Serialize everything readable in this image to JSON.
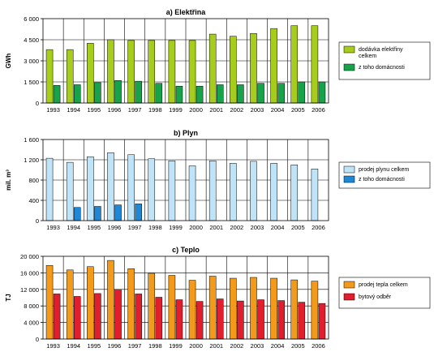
{
  "chart_data": [
    {
      "type": "bar",
      "title": "a) Elektřina",
      "ylabel": "GWh",
      "xlabel": "",
      "ylim": [
        0,
        6000
      ],
      "yticks": [
        0,
        1500,
        3000,
        4500,
        6000
      ],
      "ytick_labels": [
        "0",
        "1 500",
        "3 000",
        "4 500",
        "6 000"
      ],
      "categories": [
        "1993",
        "1994",
        "1995",
        "1996",
        "1997",
        "1998",
        "1999",
        "2000",
        "2001",
        "2002",
        "2003",
        "2004",
        "2005",
        "2006"
      ],
      "grid": "horizontal",
      "legend_position": "right",
      "series": [
        {
          "name": "dodávka elektřiny celkem",
          "color": "#a6cc1c",
          "values": [
            3800,
            3800,
            4250,
            4500,
            4450,
            4450,
            4450,
            4450,
            4900,
            4750,
            4950,
            5300,
            5500,
            5500
          ]
        },
        {
          "name": "z toho domácnosti",
          "color": "#16a34a",
          "values": [
            1250,
            1300,
            1450,
            1600,
            1550,
            1400,
            1200,
            1200,
            1300,
            1300,
            1400,
            1400,
            1500,
            1500
          ]
        }
      ]
    },
    {
      "type": "bar",
      "title": "b) Plyn",
      "ylabel": "mil. m³",
      "xlabel": "",
      "ylim": [
        0,
        1600
      ],
      "yticks": [
        0,
        400,
        800,
        1200,
        1600
      ],
      "ytick_labels": [
        "0",
        "400",
        "800",
        "1 200",
        "1 600"
      ],
      "categories": [
        "1993",
        "1994",
        "1995",
        "1996",
        "1997",
        "1998",
        "1999",
        "2000",
        "2001",
        "2002",
        "2003",
        "2004",
        "2005",
        "2006"
      ],
      "grid": "horizontal",
      "legend_position": "right",
      "series": [
        {
          "name": "prodej plynu celkem",
          "color": "#bfe3f7",
          "values": [
            1230,
            1150,
            1260,
            1340,
            1300,
            1220,
            1180,
            1080,
            1180,
            1130,
            1170,
            1130,
            1100,
            1020
          ]
        },
        {
          "name": "z toho domácnosti",
          "color": "#1e88d6",
          "values": [
            null,
            260,
            280,
            310,
            330,
            null,
            null,
            null,
            null,
            null,
            null,
            null,
            null,
            null
          ]
        }
      ]
    },
    {
      "type": "bar",
      "title": "c) Teplo",
      "ylabel": "TJ",
      "xlabel": "",
      "ylim": [
        0,
        20000
      ],
      "yticks": [
        0,
        4000,
        8000,
        12000,
        16000,
        20000
      ],
      "ytick_labels": [
        "0",
        "4 000",
        "8 000",
        "12 000",
        "16 000",
        "20 000"
      ],
      "categories": [
        "1993",
        "1994",
        "1995",
        "1996",
        "1997",
        "1998",
        "1999",
        "2000",
        "2001",
        "2002",
        "2003",
        "2004",
        "2005",
        "2006"
      ],
      "grid": "horizontal",
      "legend_position": "right",
      "series": [
        {
          "name": "prodej tepla celkem",
          "color": "#f39a1a",
          "values": [
            17800,
            16700,
            17500,
            19000,
            17000,
            15900,
            15400,
            14200,
            15200,
            14700,
            14900,
            14700,
            14300,
            14000
          ]
        },
        {
          "name": "bytový odběr",
          "color": "#e01e2e",
          "values": [
            10900,
            10300,
            11000,
            12000,
            10900,
            10100,
            9500,
            9100,
            9700,
            9200,
            9500,
            9300,
            8900,
            8600
          ]
        }
      ]
    }
  ]
}
